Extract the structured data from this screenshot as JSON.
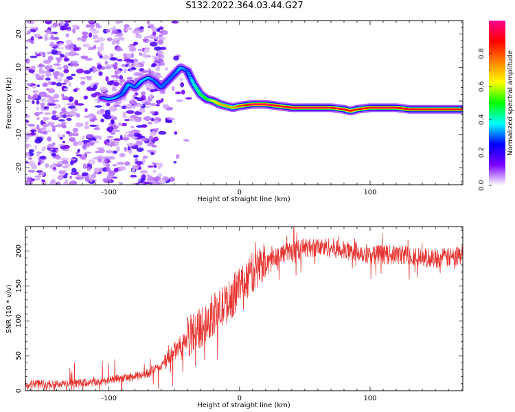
{
  "title": "S132.2022.364.03.44.G27",
  "chart_data": [
    {
      "type": "heatmap",
      "xlabel": "Height of straight line (km)",
      "ylabel": "Frequency (Hz)",
      "xlim": [
        -164,
        171
      ],
      "ylim": [
        -25,
        24
      ],
      "xticks": [
        -100,
        0,
        100
      ],
      "xtick_labels": [
        "-100",
        "0",
        "100"
      ],
      "yticks": [
        -20,
        -10,
        0,
        10,
        20
      ],
      "ytick_labels": [
        "-20",
        "-10",
        "0",
        "10",
        "20"
      ],
      "colorbar": {
        "label": "Normalized spectral amplitude",
        "range": [
          0,
          1
        ],
        "ticks": [
          0.0,
          0.2,
          0.4,
          0.6,
          0.8
        ],
        "tick_labels": [
          "0.0",
          "0.2",
          "0.4",
          "0.6",
          "0.8"
        ],
        "colors": [
          "#ffffff",
          "#7b00ff",
          "#0000ff",
          "#00ffff",
          "#00ff00",
          "#ffff00",
          "#ff8000",
          "#ff0000",
          "#ff0090"
        ]
      },
      "ridge": {
        "height_km": [
          -105,
          -100,
          -95,
          -90,
          -85,
          -80,
          -75,
          -70,
          -65,
          -60,
          -55,
          -50,
          -45,
          -40,
          -35,
          -30,
          -25,
          -20,
          -15,
          -10,
          -5,
          0,
          10,
          20,
          30,
          40,
          50,
          60,
          70,
          80,
          85,
          90,
          100,
          110,
          120,
          130,
          140,
          150,
          160,
          170
        ],
        "frequency_hz": [
          1,
          0.5,
          1,
          2,
          5,
          4,
          6,
          7,
          6,
          4,
          6,
          8,
          10,
          9,
          5,
          2,
          0.5,
          0,
          -1,
          -1.5,
          -2,
          -1.5,
          -1,
          -1,
          -1.5,
          -2,
          -2,
          -2,
          -2,
          -2.5,
          -3,
          -2.5,
          -2,
          -2,
          -2,
          -2.5,
          -2.5,
          -2.5,
          -2.5,
          -2.5
        ],
        "amplitude": [
          0.3,
          0.35,
          0.35,
          0.3,
          0.35,
          0.3,
          0.35,
          0.35,
          0.3,
          0.3,
          0.3,
          0.3,
          0.35,
          0.3,
          0.4,
          0.45,
          0.5,
          0.6,
          0.7,
          0.7,
          0.7,
          0.8,
          0.95,
          0.95,
          0.9,
          0.9,
          0.95,
          0.95,
          0.9,
          0.9,
          0.85,
          0.85,
          0.9,
          0.95,
          0.9,
          0.9,
          0.9,
          0.9,
          0.9,
          0.9
        ]
      }
    },
    {
      "type": "line",
      "xlabel": "Height of straight line (km)",
      "ylabel": "SNR (10 * v/v)",
      "xlim": [
        -164,
        171
      ],
      "ylim": [
        0,
        235
      ],
      "xticks": [
        -100,
        0,
        100
      ],
      "xtick_labels": [
        "-100",
        "0",
        "100"
      ],
      "yticks": [
        0,
        50,
        100,
        150,
        200
      ],
      "ytick_labels": [
        "0",
        "50",
        "100",
        "150",
        "200"
      ],
      "color": "#e8332f",
      "x": [
        -164,
        -150,
        -130,
        -110,
        -100,
        -90,
        -80,
        -70,
        -60,
        -50,
        -40,
        -35,
        -30,
        -25,
        -20,
        -15,
        -10,
        -5,
        0,
        10,
        20,
        30,
        40,
        50,
        60,
        70,
        80,
        90,
        100,
        110,
        120,
        130,
        140,
        150,
        160,
        171
      ],
      "y": [
        10,
        10,
        10,
        12,
        15,
        18,
        20,
        25,
        35,
        55,
        75,
        85,
        90,
        100,
        110,
        115,
        125,
        135,
        150,
        170,
        185,
        195,
        200,
        205,
        205,
        205,
        200,
        200,
        195,
        195,
        195,
        195,
        190,
        190,
        190,
        195
      ]
    }
  ]
}
